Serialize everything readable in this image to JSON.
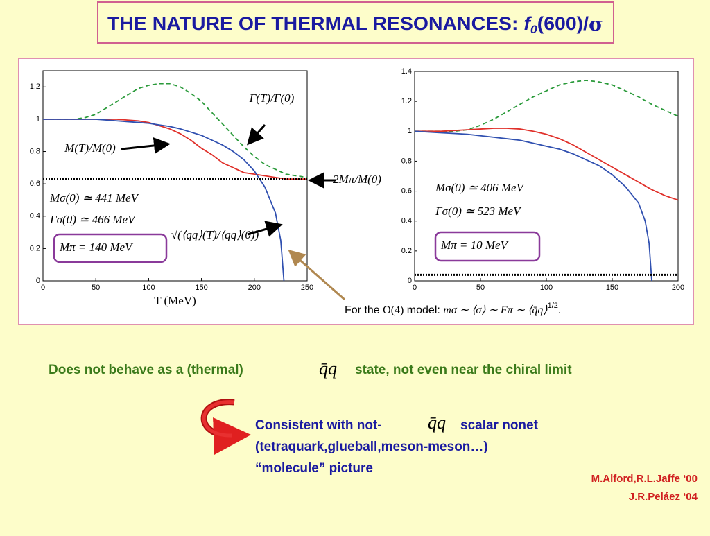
{
  "slide": {
    "title": [
      "THE NATURE OF THERMAL RESONANCES: ",
      "f",
      "0",
      "(600)/",
      "σ"
    ],
    "footnote": [
      "For the ",
      "O(4)",
      " model: ",
      "mσ ∼ ⟨σ⟩ ∼ Fπ ∼ ⟨q̄q⟩",
      "1/2",
      "."
    ],
    "statement": [
      "Does not behave as a (thermal)",
      "q̄q",
      "state, not even near the chiral limit"
    ],
    "conclusion": [
      "Consistent with not-",
      "q̄q",
      "scalar nonet",
      "(tetraquark,glueball,meson-meson…)",
      "“molecule” picture"
    ],
    "references": [
      "M.Alford,R.L.Jaffe ‘00",
      "J.R.Peláez ‘04"
    ]
  },
  "chart_data": [
    {
      "type": "line",
      "x_label": "T (MeV)",
      "xlim": [
        0,
        250
      ],
      "ylim": [
        0,
        1.3
      ],
      "xticks": [
        0,
        50,
        100,
        150,
        200,
        250
      ],
      "yticks": [
        0,
        0.2,
        0.4,
        0.6,
        0.8,
        1,
        1.2
      ],
      "series": [
        {
          "name": "Γ(T)/Γ(0)",
          "color": "#2a9a3a",
          "style": "dashed",
          "x": [
            0,
            10,
            20,
            30,
            40,
            50,
            60,
            70,
            80,
            90,
            100,
            110,
            120,
            130,
            140,
            150,
            160,
            170,
            180,
            190,
            200,
            210,
            220,
            230,
            240,
            250
          ],
          "values": [
            1,
            1,
            1,
            1,
            1.01,
            1.03,
            1.07,
            1.11,
            1.15,
            1.19,
            1.21,
            1.22,
            1.22,
            1.2,
            1.16,
            1.11,
            1.04,
            0.97,
            0.9,
            0.83,
            0.77,
            0.72,
            0.69,
            0.66,
            0.65,
            0.64
          ]
        },
        {
          "name": "M(T)/M(0)",
          "color": "#e0302a",
          "style": "solid",
          "x": [
            0,
            10,
            20,
            30,
            40,
            50,
            60,
            70,
            80,
            90,
            100,
            110,
            120,
            130,
            140,
            150,
            160,
            170,
            180,
            190,
            200,
            210,
            220,
            230,
            240,
            250
          ],
          "values": [
            1,
            1,
            1,
            1,
            1,
            1,
            1,
            1,
            0.995,
            0.99,
            0.98,
            0.96,
            0.94,
            0.91,
            0.87,
            0.82,
            0.78,
            0.73,
            0.7,
            0.67,
            0.66,
            0.65,
            0.64,
            0.63,
            0.63,
            0.63
          ]
        },
        {
          "name": "√(⟨q̄q⟩(T)/⟨q̄q⟩(0))",
          "color": "#3050b0",
          "style": "solid",
          "x": [
            0,
            10,
            20,
            30,
            40,
            50,
            60,
            70,
            80,
            90,
            100,
            110,
            120,
            130,
            140,
            150,
            160,
            170,
            180,
            190,
            200,
            210,
            220,
            225,
            228
          ],
          "values": [
            1,
            1,
            1,
            1,
            1,
            1,
            0.995,
            0.99,
            0.985,
            0.98,
            0.975,
            0.965,
            0.955,
            0.94,
            0.92,
            0.9,
            0.87,
            0.84,
            0.8,
            0.75,
            0.68,
            0.58,
            0.42,
            0.25,
            0
          ]
        },
        {
          "name": "2Mπ/M(0)",
          "color": "#000000",
          "style": "dotted",
          "x": [
            0,
            250
          ],
          "values": [
            0.63,
            0.63
          ]
        }
      ],
      "annotations": [
        "Mσ(0) ≃ 441 MeV",
        "Γσ(0) ≃ 466 MeV",
        "Mπ = 140 MeV"
      ]
    },
    {
      "type": "line",
      "xlim": [
        0,
        200
      ],
      "ylim": [
        0,
        1.4
      ],
      "xticks": [
        0,
        50,
        100,
        150,
        200
      ],
      "yticks": [
        0,
        0.2,
        0.4,
        0.6,
        0.8,
        1,
        1.2,
        1.4
      ],
      "series": [
        {
          "color": "#2a9a3a",
          "style": "dashed",
          "x": [
            0,
            10,
            20,
            30,
            40,
            50,
            60,
            70,
            80,
            90,
            100,
            110,
            120,
            130,
            140,
            150,
            160,
            170,
            180,
            190,
            200
          ],
          "values": [
            1,
            1,
            1,
            1,
            1.01,
            1.04,
            1.08,
            1.13,
            1.18,
            1.23,
            1.27,
            1.31,
            1.33,
            1.34,
            1.33,
            1.31,
            1.27,
            1.23,
            1.18,
            1.14,
            1.1
          ]
        },
        {
          "color": "#e0302a",
          "style": "solid",
          "x": [
            0,
            10,
            20,
            30,
            40,
            50,
            60,
            70,
            80,
            90,
            100,
            110,
            120,
            130,
            140,
            150,
            160,
            170,
            180,
            190,
            200
          ],
          "values": [
            1,
            1,
            1,
            1.005,
            1.01,
            1.015,
            1.02,
            1.02,
            1.015,
            1,
            0.98,
            0.95,
            0.91,
            0.86,
            0.81,
            0.76,
            0.71,
            0.66,
            0.61,
            0.57,
            0.54
          ]
        },
        {
          "color": "#3050b0",
          "style": "solid",
          "x": [
            0,
            10,
            20,
            30,
            40,
            50,
            60,
            70,
            80,
            90,
            100,
            110,
            120,
            130,
            140,
            150,
            160,
            170,
            175,
            178,
            180
          ],
          "values": [
            1,
            0.995,
            0.99,
            0.985,
            0.98,
            0.97,
            0.96,
            0.95,
            0.94,
            0.92,
            0.9,
            0.88,
            0.85,
            0.81,
            0.77,
            0.71,
            0.63,
            0.52,
            0.4,
            0.25,
            0
          ]
        },
        {
          "color": "#000000",
          "style": "dotted",
          "x": [
            0,
            200
          ],
          "values": [
            0.04,
            0.04
          ]
        }
      ],
      "annotations": [
        "Mσ(0) ≃ 406 MeV",
        "Γσ(0) ≃ 523 MeV",
        "Mπ = 10 MeV"
      ]
    }
  ]
}
